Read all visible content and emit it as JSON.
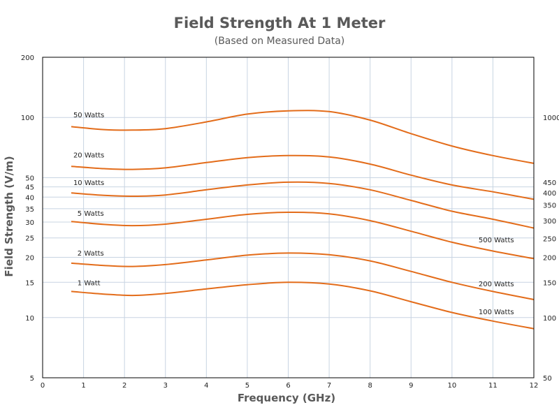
{
  "chart_data": {
    "type": "line",
    "title": "Field Strength At 1 Meter",
    "subtitle": "(Based on Measured Data)",
    "xlabel": "Frequency (GHz)",
    "ylabel": "Field Strength (V/m)",
    "xlim": [
      0,
      12
    ],
    "ylim": [
      5,
      200
    ],
    "y_scale": "log",
    "grid": true,
    "colors": {
      "curve": "#e36c1a",
      "grid": "#c8d4e2",
      "frame": "#000000",
      "text": "#595959"
    },
    "x_ticks": [
      "0",
      "1",
      "2",
      "3",
      "4",
      "5",
      "6",
      "7",
      "8",
      "9",
      "10",
      "11",
      "12"
    ],
    "y_ticks_left": [
      {
        "value": 200,
        "label": "200"
      },
      {
        "value": 100,
        "label": "100"
      },
      {
        "value": 50,
        "label": "50"
      },
      {
        "value": 45,
        "label": "45"
      },
      {
        "value": 40,
        "label": "40"
      },
      {
        "value": 35,
        "label": "35"
      },
      {
        "value": 30,
        "label": "30"
      },
      {
        "value": 25,
        "label": "25"
      },
      {
        "value": 20,
        "label": "20"
      },
      {
        "value": 15,
        "label": "15"
      },
      {
        "value": 10,
        "label": "10"
      },
      {
        "value": 5,
        "label": "5"
      }
    ],
    "y_ticks_right": [
      {
        "value": 100,
        "label": "1000"
      },
      {
        "value": 47.5,
        "label": "450"
      },
      {
        "value": 42,
        "label": "400"
      },
      {
        "value": 36.5,
        "label": "350"
      },
      {
        "value": 30.5,
        "label": "300"
      },
      {
        "value": 24.8,
        "label": "250"
      },
      {
        "value": 20,
        "label": "200"
      },
      {
        "value": 15,
        "label": "150"
      },
      {
        "value": 10,
        "label": "100"
      },
      {
        "value": 5,
        "label": "50"
      }
    ],
    "series": [
      {
        "name": "50 Watts",
        "x": [
          0.7,
          1.5,
          2.2,
          3,
          4,
          5,
          6,
          7,
          8,
          9,
          10,
          11,
          12
        ],
        "values": [
          90,
          87,
          86.5,
          88,
          95,
          104,
          108,
          107,
          97,
          83,
          72,
          64.5,
          59
        ],
        "label_x": 0.75,
        "label_y": 100
      },
      {
        "name": "20 Watts",
        "x": [
          0.7,
          1.5,
          2.2,
          3,
          4,
          5,
          6,
          7,
          8,
          9,
          10,
          11,
          12
        ],
        "values": [
          57,
          55.5,
          55,
          56,
          59.5,
          63,
          64.5,
          63.5,
          58.5,
          51.5,
          46,
          42.5,
          39
        ],
        "label_x": 0.75,
        "label_y": 63
      },
      {
        "name": "10 Watts",
        "x": [
          0.7,
          1.5,
          2.2,
          3,
          4,
          5,
          6,
          7,
          8,
          9,
          10,
          11,
          12
        ],
        "values": [
          42,
          40.8,
          40.4,
          41,
          43.5,
          46,
          47.5,
          46.8,
          43.5,
          38.5,
          34,
          31,
          28
        ],
        "label_x": 0.75,
        "label_y": 46
      },
      {
        "name": "5 Watts",
        "x": [
          0.7,
          1.5,
          2.2,
          3,
          4,
          5,
          6,
          7,
          8,
          9,
          10,
          11,
          12
        ],
        "values": [
          30.2,
          29.2,
          28.8,
          29.3,
          31,
          32.8,
          33.6,
          33,
          30.5,
          27,
          23.8,
          21.5,
          19.7
        ],
        "label_x": 0.85,
        "label_y": 32.3
      },
      {
        "name": "2 Watts",
        "x": [
          0.7,
          1.5,
          2.2,
          3,
          4,
          5,
          6,
          7,
          8,
          9,
          10,
          11,
          12
        ],
        "values": [
          18.7,
          18.2,
          18,
          18.4,
          19.4,
          20.5,
          21,
          20.6,
          19.2,
          17,
          15,
          13.5,
          12.3
        ],
        "label_x": 0.85,
        "label_y": 20.4
      },
      {
        "name": "1 Watt",
        "x": [
          0.7,
          1.5,
          2.2,
          3,
          4,
          5,
          6,
          7,
          8,
          9,
          10,
          11,
          12
        ],
        "values": [
          13.5,
          13.1,
          12.9,
          13.2,
          13.9,
          14.6,
          15,
          14.7,
          13.6,
          12,
          10.6,
          9.6,
          8.8
        ],
        "label_x": 0.85,
        "label_y": 14.5
      }
    ],
    "annotations": [
      {
        "text": "500 Watts",
        "x": 10.65,
        "y": 23.8
      },
      {
        "text": "200 Watts",
        "x": 10.65,
        "y": 14.3
      },
      {
        "text": "100 Watts",
        "x": 10.65,
        "y": 10.4
      }
    ]
  }
}
